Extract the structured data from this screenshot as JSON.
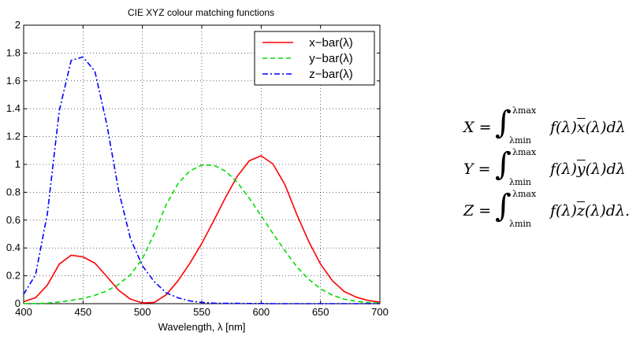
{
  "chart_data": {
    "type": "line",
    "title": "CIE XYZ colour matching functions",
    "xlabel": "Wavelength, λ [nm]",
    "ylabel": "",
    "xlim": [
      400,
      700
    ],
    "ylim": [
      0,
      2
    ],
    "xticks": [
      "400",
      "450",
      "500",
      "550",
      "600",
      "650",
      "700"
    ],
    "yticks": [
      "0",
      "0.2",
      "0.4",
      "0.6",
      "0.8",
      "1",
      "1.2",
      "1.4",
      "1.6",
      "1.8",
      "2"
    ],
    "grid": true,
    "legend_position": "top-right",
    "x": [
      400,
      410,
      420,
      430,
      440,
      450,
      460,
      470,
      480,
      490,
      500,
      510,
      520,
      530,
      540,
      550,
      560,
      570,
      580,
      590,
      600,
      610,
      620,
      630,
      640,
      650,
      660,
      670,
      680,
      690,
      700
    ],
    "series": [
      {
        "name": "x−bar(λ)",
        "color": "#ff0000",
        "dash": "solid",
        "values": [
          0.014,
          0.043,
          0.134,
          0.284,
          0.348,
          0.336,
          0.291,
          0.195,
          0.096,
          0.032,
          0.005,
          0.009,
          0.063,
          0.165,
          0.29,
          0.433,
          0.595,
          0.762,
          0.916,
          1.026,
          1.062,
          1.003,
          0.854,
          0.642,
          0.448,
          0.284,
          0.165,
          0.087,
          0.047,
          0.023,
          0.011
        ]
      },
      {
        "name": "y−bar(λ)",
        "color": "#00dd00",
        "dash": "dashed",
        "values": [
          0.0,
          0.001,
          0.004,
          0.012,
          0.023,
          0.038,
          0.06,
          0.091,
          0.139,
          0.208,
          0.323,
          0.503,
          0.71,
          0.862,
          0.954,
          0.995,
          0.995,
          0.952,
          0.87,
          0.757,
          0.631,
          0.503,
          0.381,
          0.265,
          0.175,
          0.107,
          0.061,
          0.032,
          0.017,
          0.008,
          0.004
        ]
      },
      {
        "name": "z−bar(λ)",
        "color": "#0000ff",
        "dash": "dashdot",
        "values": [
          0.068,
          0.207,
          0.646,
          1.386,
          1.747,
          1.772,
          1.669,
          1.288,
          0.813,
          0.465,
          0.272,
          0.158,
          0.078,
          0.042,
          0.02,
          0.009,
          0.004,
          0.002,
          0.002,
          0.001,
          0.001,
          0.0,
          0.0,
          0.0,
          0.0,
          0.0,
          0.0,
          0.0,
          0.0,
          0.0,
          0.0
        ]
      }
    ]
  },
  "equations": [
    {
      "lhs": "X",
      "sup": "λmax",
      "sub": "λmin",
      "rhs_pre": "f(λ)",
      "bar": "x",
      "rhs_post": "(λ)dλ"
    },
    {
      "lhs": "Y",
      "sup": "λmax",
      "sub": "λmin",
      "rhs_pre": "f(λ)",
      "bar": "y",
      "rhs_post": "(λ)dλ"
    },
    {
      "lhs": "Z",
      "sup": "λmax",
      "sub": "λmin",
      "rhs_pre": "f(λ)",
      "bar": "z",
      "rhs_post": "(λ)dλ."
    }
  ]
}
